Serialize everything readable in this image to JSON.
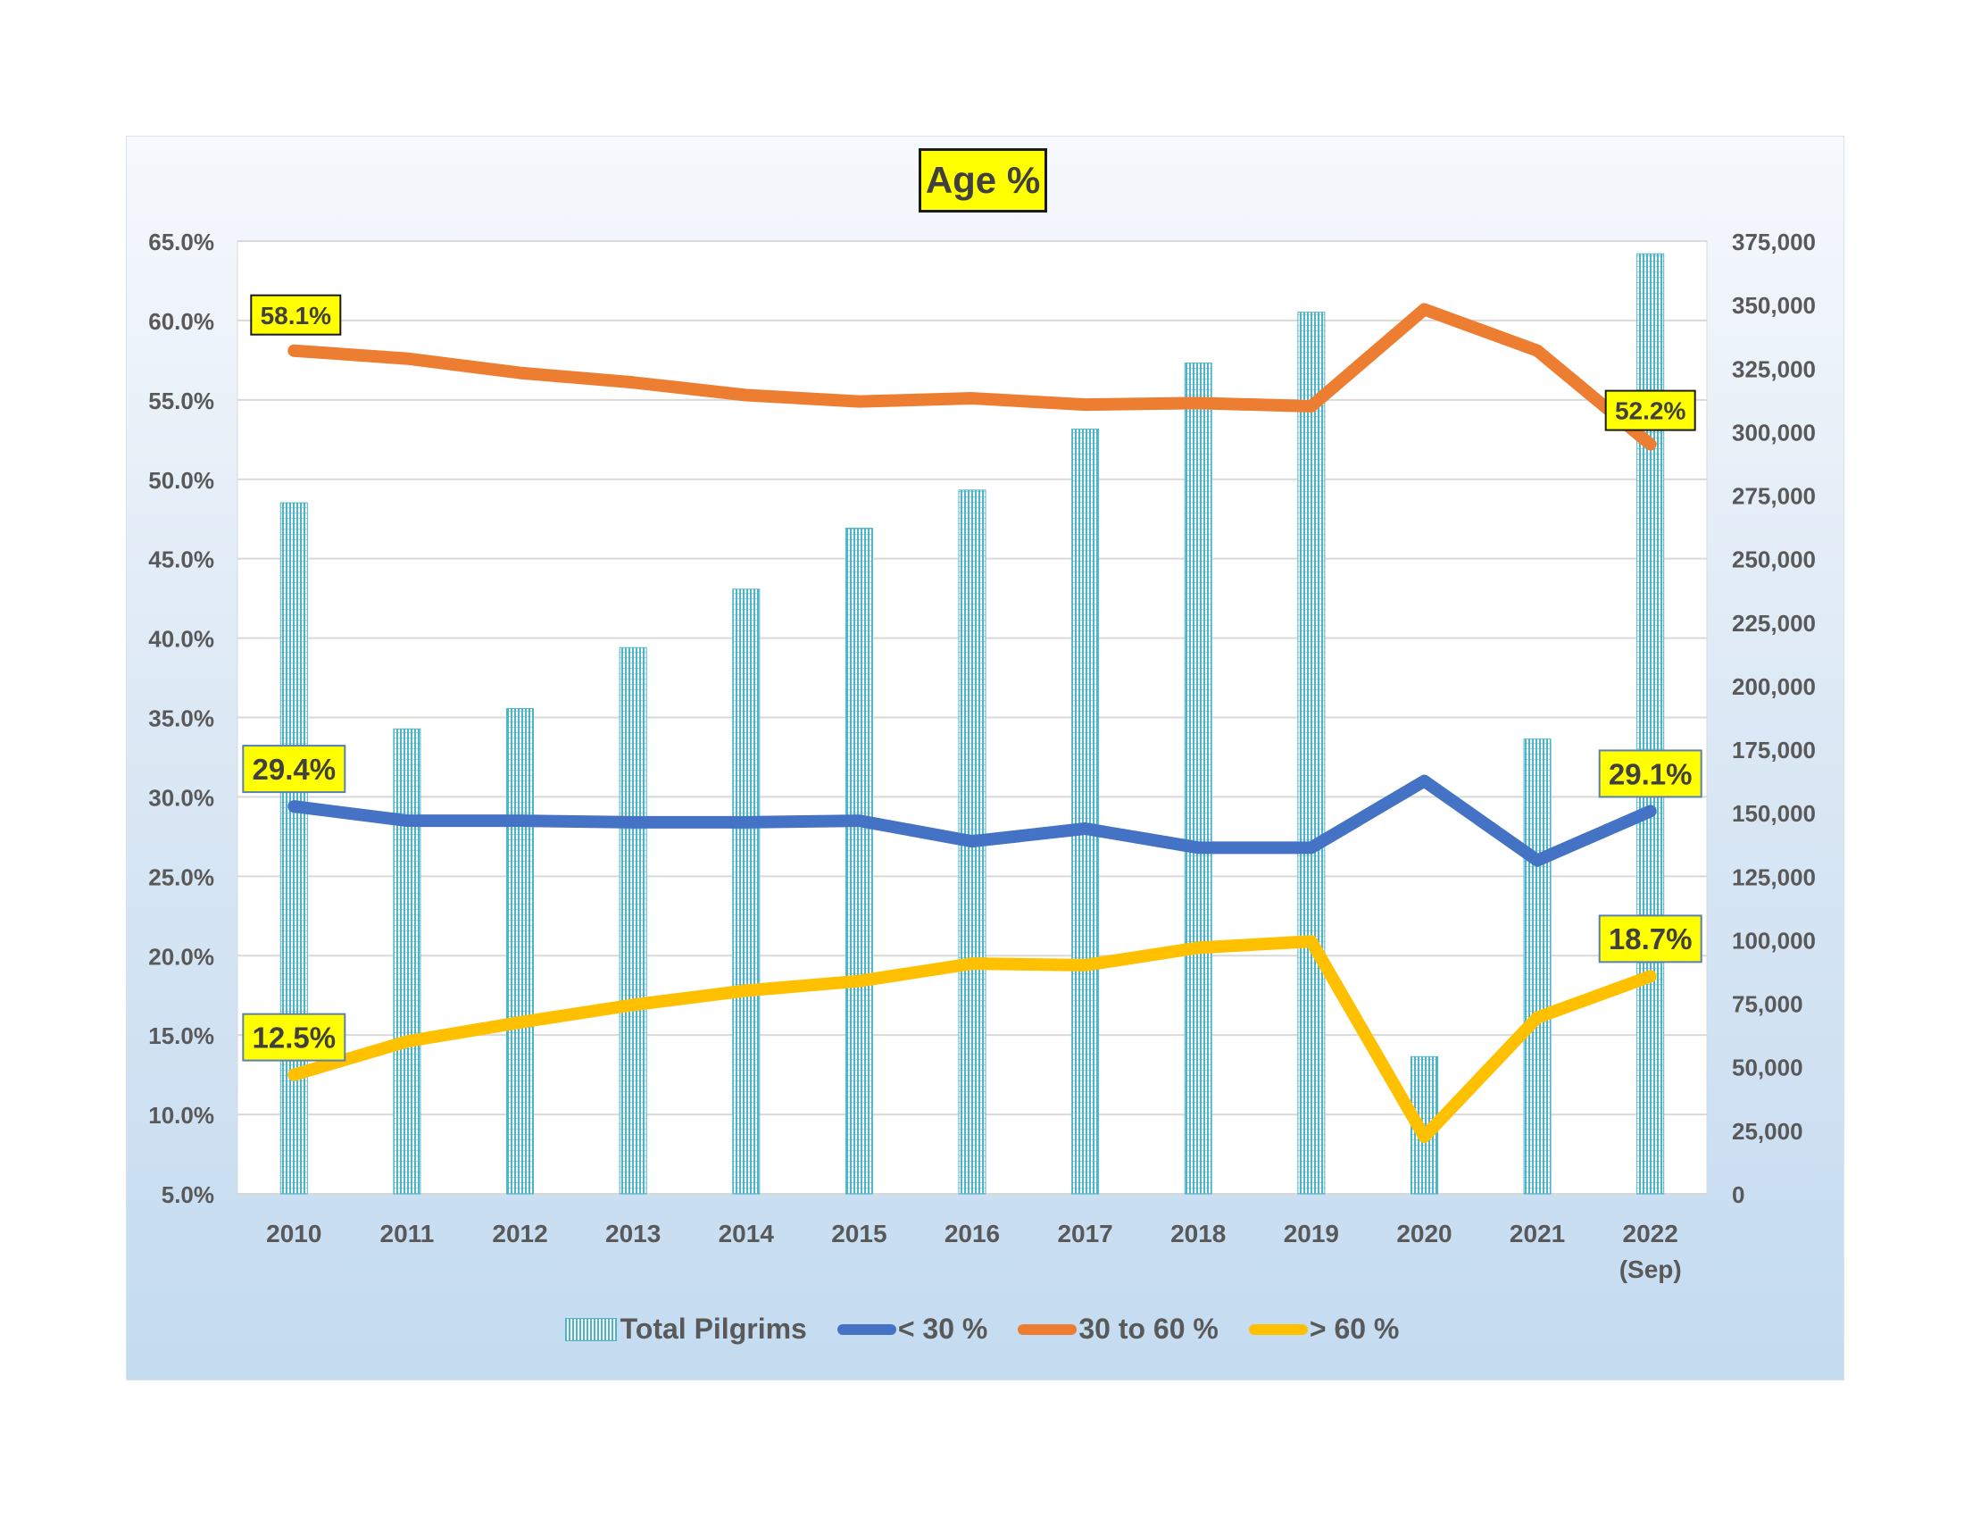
{
  "chart_data": {
    "type": "bar+line",
    "title": "Age %",
    "categories": [
      "2010",
      "2011",
      "2012",
      "2013",
      "2014",
      "2015",
      "2016",
      "2017",
      "2018",
      "2019",
      "2020",
      "2021",
      "2022\n(Sep)"
    ],
    "left_axis": {
      "min": 5,
      "max": 65,
      "step": 5,
      "ticks": [
        "5.0%",
        "10.0%",
        "15.0%",
        "20.0%",
        "25.0%",
        "30.0%",
        "35.0%",
        "40.0%",
        "45.0%",
        "50.0%",
        "55.0%",
        "60.0%",
        "65.0%"
      ]
    },
    "right_axis": {
      "min": 0,
      "max": 375000,
      "step": 25000,
      "ticks": [
        "0",
        "25,000",
        "50,000",
        "75,000",
        "100,000",
        "125,000",
        "150,000",
        "175,000",
        "200,000",
        "225,000",
        "250,000",
        "275,000",
        "300,000",
        "325,000",
        "350,000",
        "375,000"
      ]
    },
    "grid": true,
    "legend_position": "bottom",
    "series": [
      {
        "name": "Total Pilgrims",
        "kind": "bar",
        "axis": "right",
        "color": "#4bb4c9",
        "values": [
          272000,
          183000,
          191000,
          215000,
          238000,
          262000,
          277000,
          301000,
          327000,
          347000,
          54000,
          179000,
          370000
        ]
      },
      {
        "name": "< 30 %",
        "kind": "line",
        "axis": "left",
        "color": "#4472c4",
        "values": [
          29.4,
          28.5,
          28.5,
          28.4,
          28.4,
          28.5,
          27.2,
          28.0,
          26.8,
          26.8,
          31.0,
          26.0,
          29.1
        ]
      },
      {
        "name": "30 to 60 %",
        "kind": "line",
        "axis": "left",
        "color": "#ed7d31",
        "values": [
          58.1,
          57.6,
          56.7,
          56.1,
          55.3,
          54.9,
          55.1,
          54.7,
          54.8,
          54.6,
          60.7,
          58.1,
          52.2
        ]
      },
      {
        "name": "> 60 %",
        "kind": "line",
        "axis": "left",
        "color": "#ffc000",
        "values": [
          12.5,
          14.6,
          15.8,
          16.9,
          17.8,
          18.4,
          19.5,
          19.4,
          20.5,
          20.9,
          8.6,
          16.1,
          18.7
        ]
      }
    ],
    "data_labels": [
      {
        "series": 1,
        "index": 0,
        "text": "29.4%"
      },
      {
        "series": 1,
        "index": 12,
        "text": "29.1%"
      },
      {
        "series": 2,
        "index": 0,
        "text": "58.1%"
      },
      {
        "series": 2,
        "index": 12,
        "text": "52.2%"
      },
      {
        "series": 3,
        "index": 0,
        "text": "12.5%"
      },
      {
        "series": 3,
        "index": 12,
        "text": "18.7%"
      }
    ]
  }
}
